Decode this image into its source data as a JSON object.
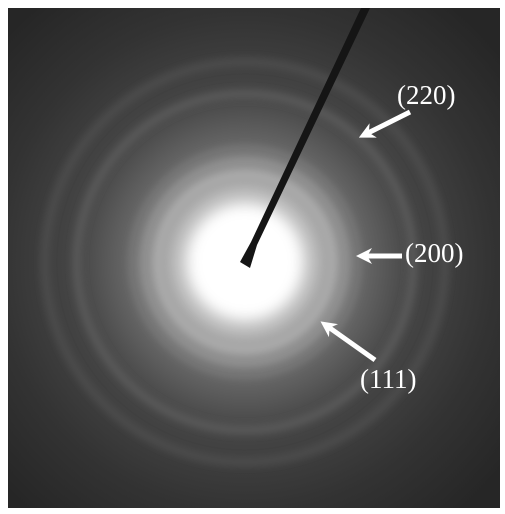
{
  "annotations": [
    "(220)",
    "(200)",
    "(111)"
  ]
}
